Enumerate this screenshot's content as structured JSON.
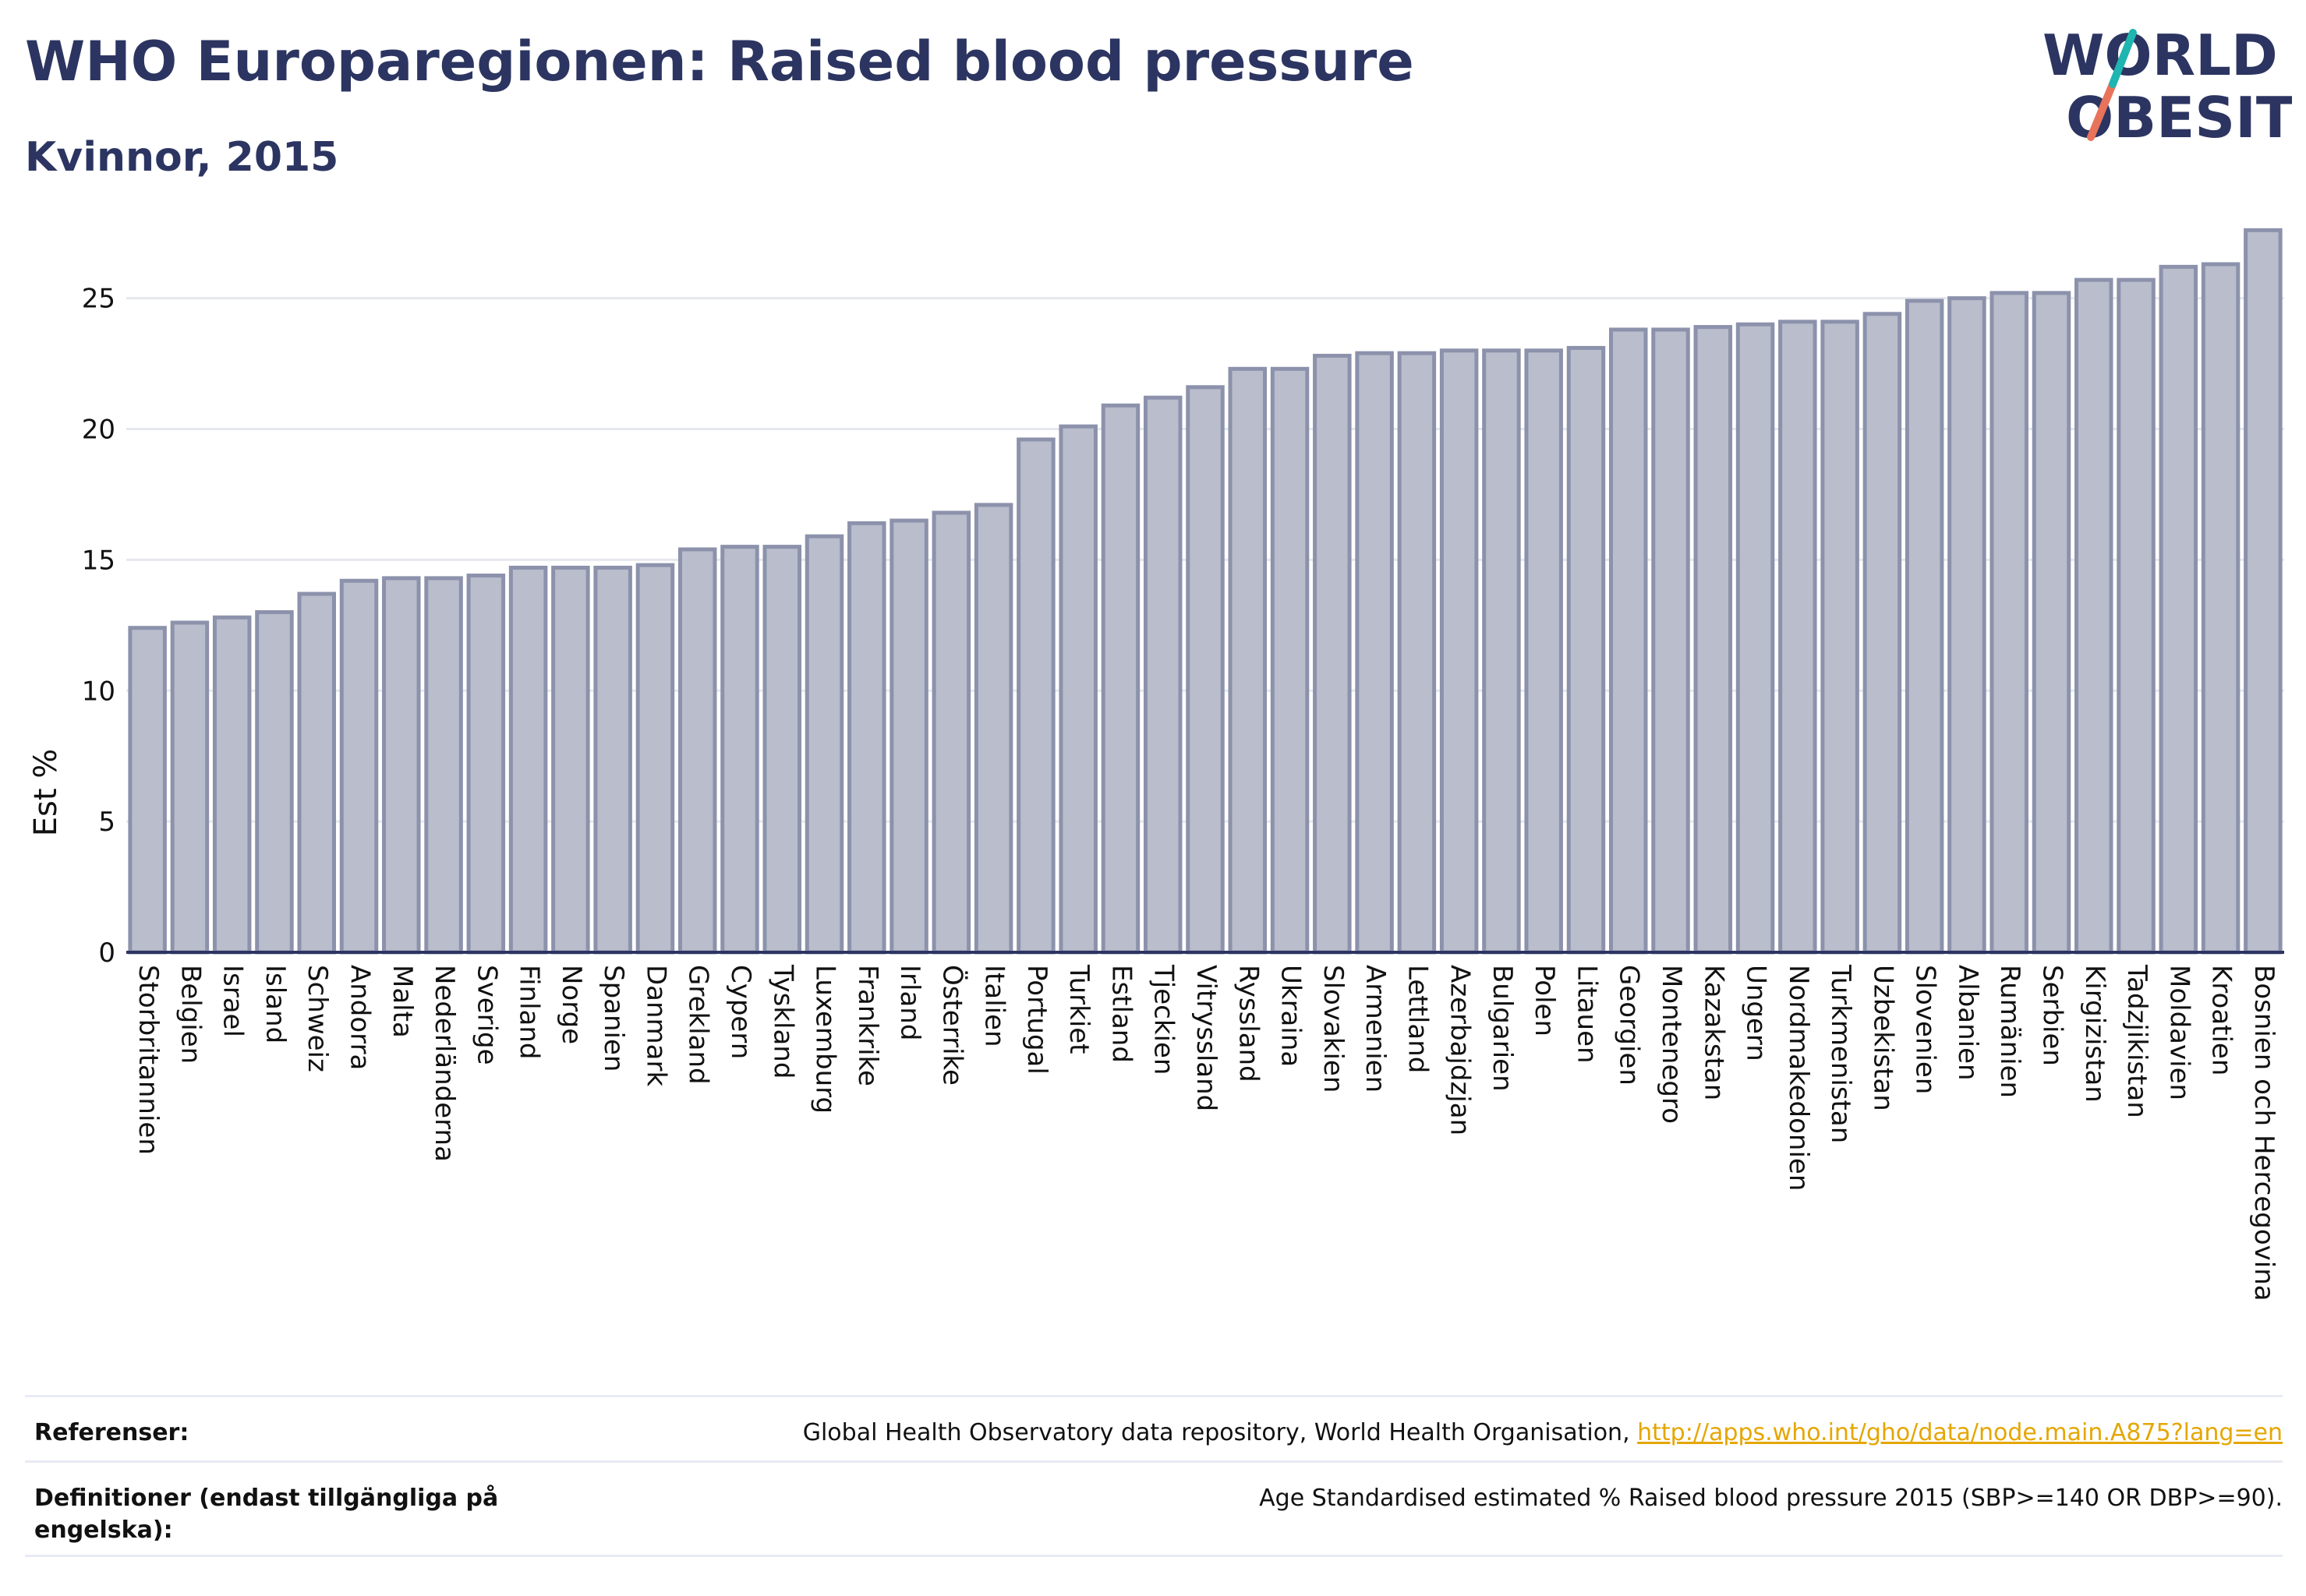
{
  "header": {
    "title": "WHO Europaregionen: Raised blood pressure",
    "subtitle": "Kvinnor, 2015"
  },
  "logo": {
    "line1": "WORLD",
    "line2": "OBESITY",
    "slash_colors": [
      "#1fb5b0",
      "#e8735a"
    ]
  },
  "chart_data": {
    "type": "bar",
    "title": "WHO Europaregionen: Raised blood pressure",
    "subtitle": "Kvinnor, 2015",
    "xlabel": "",
    "ylabel": "Est %",
    "ylim": [
      0,
      27.7
    ],
    "yticks": [
      0,
      5,
      10,
      15,
      20,
      25
    ],
    "grid": true,
    "bar_color": "#b9bdcc",
    "bar_edge_color": "#8c92ab",
    "categories": [
      "Storbritannien",
      "Belgien",
      "Israel",
      "Island",
      "Schweiz",
      "Andorra",
      "Malta",
      "Nederländerna",
      "Sverige",
      "Finland",
      "Norge",
      "Spanien",
      "Danmark",
      "Grekland",
      "Cypern",
      "Tyskland",
      "Luxemburg",
      "Frankrike",
      "Irland",
      "Österrike",
      "Italien",
      "Portugal",
      "Turkiet",
      "Estland",
      "Tjeckien",
      "Vitryssland",
      "Ryssland",
      "Ukraina",
      "Slovakien",
      "Armenien",
      "Lettland",
      "Azerbajdzjan",
      "Bulgarien",
      "Polen",
      "Litauen",
      "Georgien",
      "Montenegro",
      "Kazakstan",
      "Ungern",
      "Nordmakedonien",
      "Turkmenistan",
      "Uzbekistan",
      "Slovenien",
      "Albanien",
      "Rumänien",
      "Serbien",
      "Kirgizistan",
      "Tadzjikistan",
      "Moldavien",
      "Kroatien",
      "Bosnien och Hercegovina"
    ],
    "values": [
      12.4,
      12.6,
      12.8,
      13.0,
      13.7,
      14.2,
      14.3,
      14.3,
      14.4,
      14.7,
      14.7,
      14.7,
      14.8,
      15.4,
      15.5,
      15.5,
      15.9,
      16.4,
      16.5,
      16.8,
      17.1,
      19.6,
      20.1,
      20.9,
      21.2,
      21.6,
      22.3,
      22.3,
      22.8,
      22.9,
      22.9,
      23.0,
      23.0,
      23.0,
      23.1,
      23.8,
      23.8,
      23.9,
      24.0,
      24.1,
      24.1,
      24.4,
      24.9,
      25.0,
      25.2,
      25.2,
      25.7,
      25.7,
      26.2,
      26.3,
      27.6
    ]
  },
  "footer": {
    "references_label": "Referenser:",
    "references_text": "Global Health Observatory data repository, World Health Organisation, ",
    "references_link": "http://apps.who.int/gho/data/node.main.A875?lang=en",
    "definitions_label": "Definitioner (endast tillgängliga på engelska):",
    "definitions_text": "Age Standardised estimated % Raised blood pressure 2015 (SBP>=140 OR DBP>=90)."
  }
}
